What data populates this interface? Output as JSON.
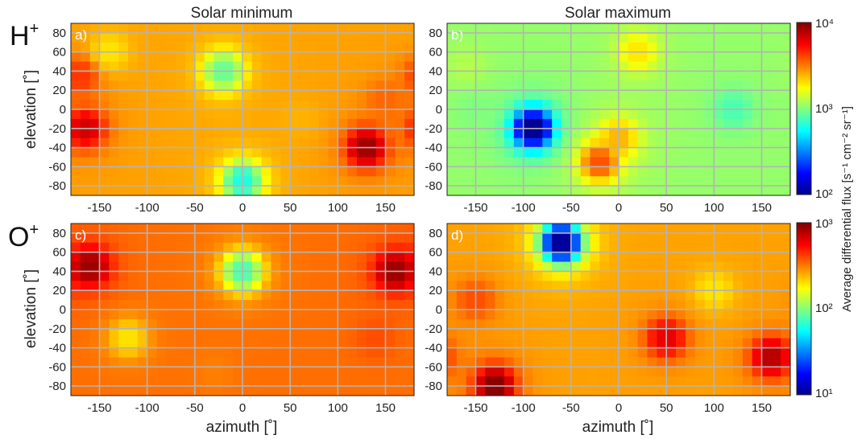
{
  "figure": {
    "column_titles": [
      "Solar minimum",
      "Solar maximum"
    ],
    "row_labels": [
      {
        "base": "H",
        "sup": "+"
      },
      {
        "base": "O",
        "sup": "+"
      }
    ],
    "colorbar_label": "Average differential flux [s⁻¹ cm⁻² sr⁻¹]",
    "colorbars": [
      {
        "row": 0,
        "min_exp": 2,
        "max_exp": 4,
        "mid_exp": 3,
        "labels": [
          "10⁴",
          "10³",
          "10²"
        ]
      },
      {
        "row": 1,
        "min_exp": 1,
        "max_exp": 3,
        "mid_exp": 2,
        "labels": [
          "10³",
          "10²",
          "10¹"
        ]
      }
    ],
    "colormap": "jet",
    "grid_color": "#b4b4b4"
  },
  "chart_data": [
    {
      "type": "heatmap",
      "panel_label": "a)",
      "title": "Solar minimum",
      "species": "H+",
      "xlabel": "",
      "ylabel": "elevation [˚]",
      "xlim": [
        -180,
        180
      ],
      "ylim": [
        -90,
        90
      ],
      "xticks": [
        "-150",
        "-100",
        "-50",
        "0",
        "50",
        "100",
        "150"
      ],
      "yticks": [
        "80",
        "60",
        "40",
        "20",
        "0",
        "-20",
        "-40",
        "-60",
        "-80"
      ],
      "log_flux_min": 2,
      "log_flux_max": 4,
      "features": [
        {
          "az": -170,
          "el": 35,
          "log_flux": 3.65
        },
        {
          "az": -165,
          "el": -20,
          "log_flux": 3.85
        },
        {
          "az": -140,
          "el": 60,
          "log_flux": 3.3
        },
        {
          "az": -20,
          "el": 40,
          "log_flux": 2.95
        },
        {
          "az": 60,
          "el": -10,
          "log_flux": 3.4
        },
        {
          "az": 130,
          "el": -40,
          "log_flux": 3.95
        },
        {
          "az": 150,
          "el": 10,
          "log_flux": 3.55
        },
        {
          "az": 0,
          "el": -75,
          "log_flux": 2.8
        }
      ]
    },
    {
      "type": "heatmap",
      "panel_label": "b)",
      "title": "Solar maximum",
      "species": "H+",
      "xlabel": "",
      "ylabel": "",
      "xlim": [
        -180,
        180
      ],
      "ylim": [
        -90,
        90
      ],
      "xticks": [
        "-150",
        "-100",
        "-50",
        "0",
        "50",
        "100",
        "150"
      ],
      "yticks": [
        "80",
        "60",
        "40",
        "20",
        "0",
        "-20",
        "-40",
        "-60",
        "-80"
      ],
      "log_flux_min": 2,
      "log_flux_max": 4,
      "features": [
        {
          "az": 20,
          "el": 60,
          "log_flux": 3.3
        },
        {
          "az": 0,
          "el": -30,
          "log_flux": 3.4
        },
        {
          "az": -20,
          "el": -55,
          "log_flux": 3.6
        },
        {
          "az": -160,
          "el": 45,
          "log_flux": 3.1
        },
        {
          "az": -150,
          "el": 0,
          "log_flux": 3.0
        },
        {
          "az": 120,
          "el": 0,
          "log_flux": 2.9
        },
        {
          "az": -90,
          "el": -20,
          "log_flux": 2.0
        }
      ]
    },
    {
      "type": "heatmap",
      "panel_label": "c)",
      "title": "",
      "species": "O+",
      "xlabel": "azimuth [˚]",
      "ylabel": "elevation [˚]",
      "xlim": [
        -180,
        180
      ],
      "ylim": [
        -90,
        90
      ],
      "xticks": [
        "-150",
        "-100",
        "-50",
        "0",
        "50",
        "100",
        "150"
      ],
      "yticks": [
        "80",
        "60",
        "40",
        "20",
        "0",
        "-20",
        "-40",
        "-60",
        "-80"
      ],
      "log_flux_min": 1,
      "log_flux_max": 3,
      "features": [
        {
          "az": -160,
          "el": 45,
          "log_flux": 2.95
        },
        {
          "az": 160,
          "el": 40,
          "log_flux": 2.95
        },
        {
          "az": 140,
          "el": -30,
          "log_flux": 2.6
        },
        {
          "az": -30,
          "el": -65,
          "log_flux": 2.5
        },
        {
          "az": -120,
          "el": -30,
          "log_flux": 2.3
        },
        {
          "az": 0,
          "el": 40,
          "log_flux": 1.9
        }
      ]
    },
    {
      "type": "heatmap",
      "panel_label": "d)",
      "title": "",
      "species": "O+",
      "xlabel": "azimuth [˚]",
      "ylabel": "",
      "xlim": [
        -180,
        180
      ],
      "ylim": [
        -90,
        90
      ],
      "xticks": [
        "-150",
        "-100",
        "-50",
        "0",
        "50",
        "100",
        "150"
      ],
      "yticks": [
        "80",
        "60",
        "40",
        "20",
        "0",
        "-20",
        "-40",
        "-60",
        "-80"
      ],
      "log_flux_min": 1,
      "log_flux_max": 3,
      "features": [
        {
          "az": -130,
          "el": -80,
          "log_flux": 3.0
        },
        {
          "az": 160,
          "el": -50,
          "log_flux": 2.9
        },
        {
          "az": 50,
          "el": -30,
          "log_flux": 2.8
        },
        {
          "az": -150,
          "el": 10,
          "log_flux": 2.6
        },
        {
          "az": 100,
          "el": 20,
          "log_flux": 2.3
        },
        {
          "az": -60,
          "el": 70,
          "log_flux": 1.0
        }
      ]
    }
  ]
}
